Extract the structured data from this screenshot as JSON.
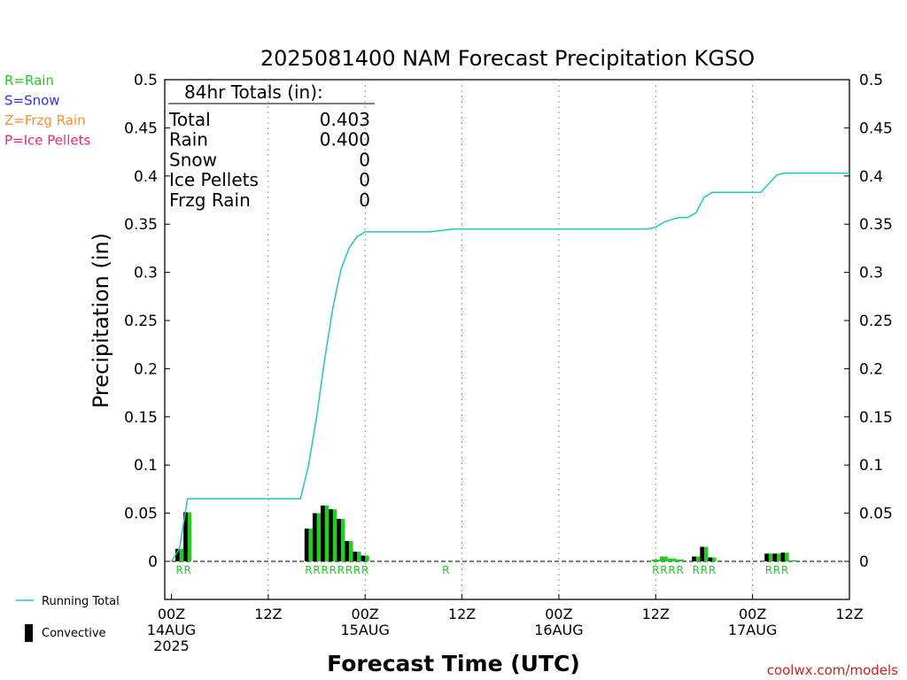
{
  "chart_data": {
    "type": "bar",
    "title": "2025081400 NAM Forecast Precipitation KGSO",
    "xlabel": "Forecast Time (UTC)",
    "ylabel": "Precipitation (in)",
    "ylim": [
      0,
      0.5
    ],
    "xlim_hours": [
      0,
      84
    ],
    "yticks": [
      "0",
      "0.05",
      "0.1",
      "0.15",
      "0.2",
      "0.25",
      "0.3",
      "0.35",
      "0.4",
      "0.45",
      "0.5"
    ],
    "xticks": [
      {
        "hour": 0,
        "lines": [
          "00Z",
          "14AUG",
          "2025"
        ]
      },
      {
        "hour": 12,
        "lines": [
          "12Z"
        ]
      },
      {
        "hour": 24,
        "lines": [
          "00Z",
          "15AUG"
        ]
      },
      {
        "hour": 36,
        "lines": [
          "12Z"
        ]
      },
      {
        "hour": 48,
        "lines": [
          "00Z",
          "16AUG"
        ]
      },
      {
        "hour": 60,
        "lines": [
          "12Z"
        ]
      },
      {
        "hour": 72,
        "lines": [
          "00Z",
          "17AUG"
        ]
      },
      {
        "hour": 84,
        "lines": [
          "12Z"
        ]
      }
    ],
    "grid": "vertical dotted at 12-hour ticks",
    "ptype_legend": [
      {
        "label": "R=Rain",
        "color": "#22cc22"
      },
      {
        "label": "S=Snow",
        "color": "#3333ee"
      },
      {
        "label": "Z=Frzg Rain",
        "color": "#ff8c33"
      },
      {
        "label": "P=Ice Pellets",
        "color": "#ee2288"
      }
    ],
    "totals": {
      "heading": "84hr Totals (in):",
      "rows": [
        {
          "label": "Total",
          "value": "0.403"
        },
        {
          "label": "Rain",
          "value": "0.400"
        },
        {
          "label": "Snow",
          "value": "0"
        },
        {
          "label": "Ice Pellets",
          "value": "0"
        },
        {
          "label": "Frzg Rain",
          "value": "0"
        }
      ]
    },
    "series": [
      {
        "name": "Running Total",
        "color": "#22c4c4",
        "points": [
          [
            0,
            0
          ],
          [
            1,
            0.013
          ],
          [
            2,
            0.065
          ],
          [
            3,
            0.065
          ],
          [
            16,
            0.065
          ],
          [
            17,
            0.1
          ],
          [
            18,
            0.15
          ],
          [
            19,
            0.21
          ],
          [
            20,
            0.263
          ],
          [
            21,
            0.303
          ],
          [
            22,
            0.325
          ],
          [
            23,
            0.337
          ],
          [
            24,
            0.342
          ],
          [
            32,
            0.342
          ],
          [
            35,
            0.345
          ],
          [
            59,
            0.345
          ],
          [
            60,
            0.347
          ],
          [
            61,
            0.352
          ],
          [
            62,
            0.355
          ],
          [
            63,
            0.357
          ],
          [
            64,
            0.357
          ],
          [
            65,
            0.362
          ],
          [
            66,
            0.378
          ],
          [
            67,
            0.383
          ],
          [
            73,
            0.383
          ],
          [
            74,
            0.392
          ],
          [
            75,
            0.401
          ],
          [
            76,
            0.403
          ],
          [
            84,
            0.403
          ]
        ]
      },
      {
        "name": "Convective",
        "color": "#000000",
        "bars": [
          {
            "hour": 1,
            "total": 0.013,
            "conv": 0.013
          },
          {
            "hour": 2,
            "total": 0.051,
            "conv": 0.051
          },
          {
            "hour": 17,
            "total": 0.034,
            "conv": 0.034
          },
          {
            "hour": 18,
            "total": 0.05,
            "conv": 0.05
          },
          {
            "hour": 19,
            "total": 0.058,
            "conv": 0.058
          },
          {
            "hour": 20,
            "total": 0.054,
            "conv": 0.054
          },
          {
            "hour": 21,
            "total": 0.044,
            "conv": 0.044
          },
          {
            "hour": 22,
            "total": 0.021,
            "conv": 0.021
          },
          {
            "hour": 23,
            "total": 0.01,
            "conv": 0.01
          },
          {
            "hour": 24,
            "total": 0.006,
            "conv": 0.006
          },
          {
            "hour": 60,
            "total": 0.002,
            "conv": 0
          },
          {
            "hour": 61,
            "total": 0.005,
            "conv": 0
          },
          {
            "hour": 62,
            "total": 0.003,
            "conv": 0
          },
          {
            "hour": 63,
            "total": 0.002,
            "conv": 0
          },
          {
            "hour": 65,
            "total": 0.005,
            "conv": 0.005
          },
          {
            "hour": 66,
            "total": 0.015,
            "conv": 0.015
          },
          {
            "hour": 67,
            "total": 0.004,
            "conv": 0.004
          },
          {
            "hour": 74,
            "total": 0.008,
            "conv": 0.008
          },
          {
            "hour": 75,
            "total": 0.008,
            "conv": 0.008
          },
          {
            "hour": 76,
            "total": 0.009,
            "conv": 0.009
          },
          {
            "hour": 77,
            "total": 0.001,
            "conv": 0
          }
        ]
      }
    ],
    "ptype_marks": [
      {
        "hour": 1,
        "label": "R"
      },
      {
        "hour": 2,
        "label": "R"
      },
      {
        "hour": 17,
        "label": "R"
      },
      {
        "hour": 18,
        "label": "R"
      },
      {
        "hour": 19,
        "label": "R"
      },
      {
        "hour": 20,
        "label": "R"
      },
      {
        "hour": 21,
        "label": "R"
      },
      {
        "hour": 22,
        "label": "R"
      },
      {
        "hour": 23,
        "label": "R"
      },
      {
        "hour": 24,
        "label": "R"
      },
      {
        "hour": 34,
        "label": "R"
      },
      {
        "hour": 60,
        "label": "R"
      },
      {
        "hour": 61,
        "label": "R"
      },
      {
        "hour": 62,
        "label": "R"
      },
      {
        "hour": 63,
        "label": "R"
      },
      {
        "hour": 65,
        "label": "R"
      },
      {
        "hour": 66,
        "label": "R"
      },
      {
        "hour": 67,
        "label": "R"
      },
      {
        "hour": 74,
        "label": "R"
      },
      {
        "hour": 75,
        "label": "R"
      },
      {
        "hour": 76,
        "label": "R"
      }
    ],
    "legend": [
      {
        "label": "Running Total",
        "kind": "line",
        "color": "#22c4c4"
      },
      {
        "label": "Convective",
        "kind": "bar",
        "color": "#000000"
      }
    ],
    "credit": "coolwx.com/models",
    "colors": {
      "precip_bar": "#22cc22",
      "convective": "#000000",
      "running_total": "#22c4c4",
      "credit": "#cc2222"
    }
  }
}
